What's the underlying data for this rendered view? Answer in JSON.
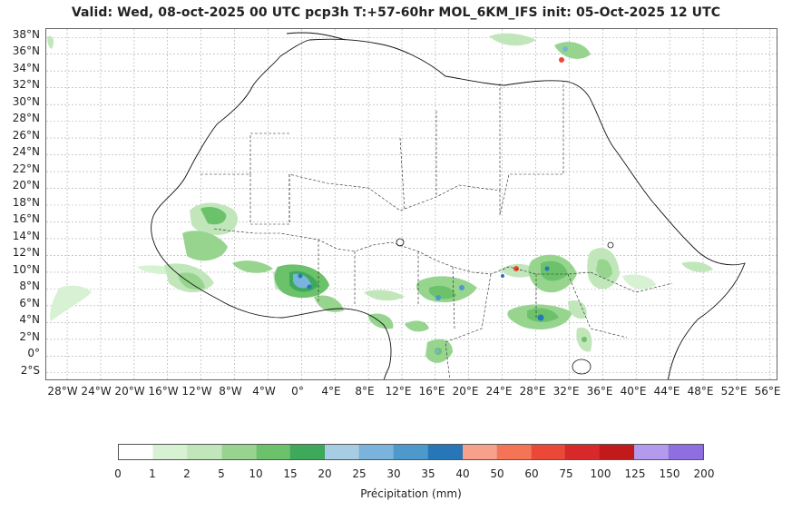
{
  "title": "Valid: Wed, 08-oct-2025   00 UTC   pcp3h   T:+57-60hr   MOL_6KM_IFS   init: 05-Oct-2025    12 UTC",
  "lat_labels": [
    "38°N",
    "36°N",
    "34°N",
    "32°N",
    "30°N",
    "28°N",
    "26°N",
    "24°N",
    "22°N",
    "20°N",
    "18°N",
    "16°N",
    "14°N",
    "12°N",
    "10°N",
    "8°N",
    "6°N",
    "4°N",
    "2°N",
    "0°",
    "2°S"
  ],
  "lon_labels": [
    "28°W",
    "24°W",
    "20°W",
    "16°W",
    "12°W",
    "8°W",
    "4°W",
    "0°",
    "4°E",
    "8°E",
    "12°E",
    "16°E",
    "20°E",
    "24°E",
    "28°E",
    "32°E",
    "36°E",
    "40°E",
    "44°E",
    "48°E",
    "52°E",
    "56°E"
  ],
  "colorbar": {
    "label": "Précipitation (mm)",
    "ticks": [
      "0",
      "1",
      "2",
      "5",
      "10",
      "15",
      "20",
      "25",
      "30",
      "35",
      "40",
      "50",
      "60",
      "75",
      "100",
      "125",
      "150",
      "200"
    ],
    "colors": [
      "#ffffff",
      "#d6f2d2",
      "#c0e6ba",
      "#97d58f",
      "#6cc26a",
      "#3ea95a",
      "#a6cde4",
      "#7ab4dc",
      "#4d99cb",
      "#2777b8",
      "#f7a08a",
      "#f57456",
      "#ec4838",
      "#d8282a",
      "#c21a1a",
      "#b39aed",
      "#8f6fe0",
      "#4b0082"
    ]
  },
  "map_bounds": {
    "lon_min": -30.5,
    "lon_max": 57,
    "lat_min": -3,
    "lat_max": 39
  }
}
